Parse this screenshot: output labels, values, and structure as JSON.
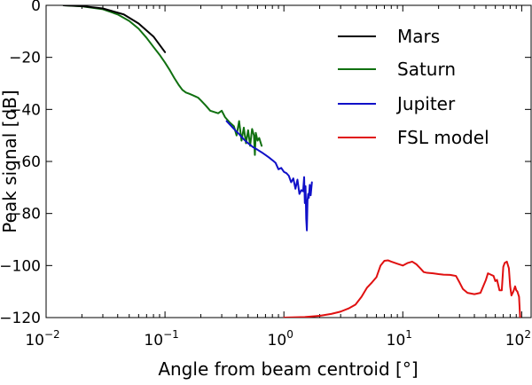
{
  "chart_data": {
    "type": "line",
    "title": "",
    "xlabel": "Angle from beam centroid [°]",
    "ylabel": "Peak signal [dB]",
    "xscale": "log",
    "xlim": [
      0.01,
      120
    ],
    "ylim": [
      -120,
      0
    ],
    "x_ticks": [
      {
        "value": 0.01,
        "base": "10",
        "exp": "−2"
      },
      {
        "value": 0.1,
        "base": "10",
        "exp": "−1"
      },
      {
        "value": 1,
        "base": "10",
        "exp": "0"
      },
      {
        "value": 10,
        "base": "10",
        "exp": "1"
      },
      {
        "value": 100,
        "base": "10",
        "exp": "2"
      }
    ],
    "y_ticks": [
      {
        "value": 0,
        "label": "0"
      },
      {
        "value": -20,
        "label": "−20"
      },
      {
        "value": -40,
        "label": "−40"
      },
      {
        "value": -60,
        "label": "−60"
      },
      {
        "value": -80,
        "label": "−80"
      },
      {
        "value": -100,
        "label": "−100"
      },
      {
        "value": -120,
        "label": "−120"
      }
    ],
    "legend": {
      "position": "top-right"
    },
    "series": [
      {
        "name": "Mars",
        "color": "#000000",
        "x": [
          0.014,
          0.02,
          0.03,
          0.045,
          0.06,
          0.08,
          0.1
        ],
        "y": [
          0,
          -0.3,
          -1.2,
          -3.5,
          -7,
          -12,
          -18
        ]
      },
      {
        "name": "Saturn",
        "color": "#107010",
        "x": [
          0.014,
          0.02,
          0.03,
          0.04,
          0.05,
          0.06,
          0.07,
          0.08,
          0.09,
          0.1,
          0.11,
          0.12,
          0.13,
          0.14,
          0.15,
          0.16,
          0.17,
          0.18,
          0.19,
          0.2,
          0.22,
          0.24,
          0.26,
          0.28,
          0.3,
          0.32,
          0.35,
          0.38,
          0.4,
          0.42,
          0.44,
          0.46,
          0.48,
          0.5,
          0.52,
          0.54,
          0.56,
          0.57,
          0.58,
          0.6,
          0.62,
          0.65
        ],
        "y": [
          0,
          -0.4,
          -1.5,
          -3.5,
          -6,
          -9,
          -12.5,
          -16,
          -19,
          -22,
          -25,
          -28,
          -30.5,
          -32.5,
          -33.5,
          -34,
          -34.5,
          -35,
          -35.5,
          -36.5,
          -38.5,
          -40.5,
          -41,
          -41.5,
          -40.5,
          -43,
          -45,
          -46.5,
          -50,
          -44.5,
          -52,
          -47,
          -53,
          -48,
          -54,
          -47.5,
          -50,
          -57.5,
          -49,
          -52,
          -51,
          -54
        ]
      },
      {
        "name": "Jupiter",
        "color": "#1010c8",
        "x": [
          0.33,
          0.38,
          0.42,
          0.46,
          0.5,
          0.55,
          0.6,
          0.65,
          0.7,
          0.75,
          0.8,
          0.85,
          0.9,
          0.95,
          1.0,
          1.05,
          1.1,
          1.15,
          1.2,
          1.25,
          1.3,
          1.35,
          1.4,
          1.45,
          1.48,
          1.5,
          1.52,
          1.54,
          1.56,
          1.58,
          1.6,
          1.62,
          1.65,
          1.68,
          1.72
        ],
        "y": [
          -44.5,
          -47.5,
          -49.5,
          -51.5,
          -53,
          -54.5,
          -55.5,
          -56.5,
          -57.5,
          -58.5,
          -59.5,
          -60.5,
          -63,
          -62.5,
          -64,
          -64.5,
          -65.5,
          -68,
          -66.5,
          -70.5,
          -67,
          -72.5,
          -71,
          -71.5,
          -66,
          -76,
          -69.5,
          -82,
          -86.5,
          -75,
          -72.5,
          -74,
          -69,
          -73,
          -68
        ]
      },
      {
        "name": "FSL model",
        "color": "#e01010",
        "x": [
          1.0,
          1.5,
          2.0,
          2.5,
          3.0,
          3.5,
          4.0,
          4.5,
          5.0,
          5.5,
          6.0,
          6.5,
          7.0,
          7.5,
          8.0,
          9.0,
          10,
          11,
          12,
          13,
          14,
          15,
          16,
          18,
          20,
          22,
          25,
          28,
          30,
          32,
          35,
          40,
          45,
          50,
          52,
          55,
          58,
          60,
          62,
          65,
          68,
          70,
          72,
          75,
          78,
          80,
          82,
          85,
          88,
          90,
          92,
          95,
          97,
          100
        ],
        "y": [
          -120,
          -119.8,
          -119.3,
          -118.6,
          -117.7,
          -116.5,
          -115,
          -112,
          -108.5,
          -106.5,
          -104.5,
          -100,
          -98.2,
          -98,
          -98.5,
          -99.3,
          -100,
          -99,
          -98.5,
          -99.5,
          -101,
          -102.5,
          -102.8,
          -103,
          -103.3,
          -103.5,
          -103.6,
          -104,
          -106.5,
          -109,
          -110.5,
          -111,
          -110.5,
          -105.5,
          -103,
          -103.5,
          -104,
          -106,
          -105.5,
          -109.5,
          -109.5,
          -100.5,
          -99,
          -98.5,
          -101,
          -108,
          -111.5,
          -110,
          -108,
          -109.5,
          -110,
          -112,
          -120,
          -121
        ]
      }
    ]
  }
}
